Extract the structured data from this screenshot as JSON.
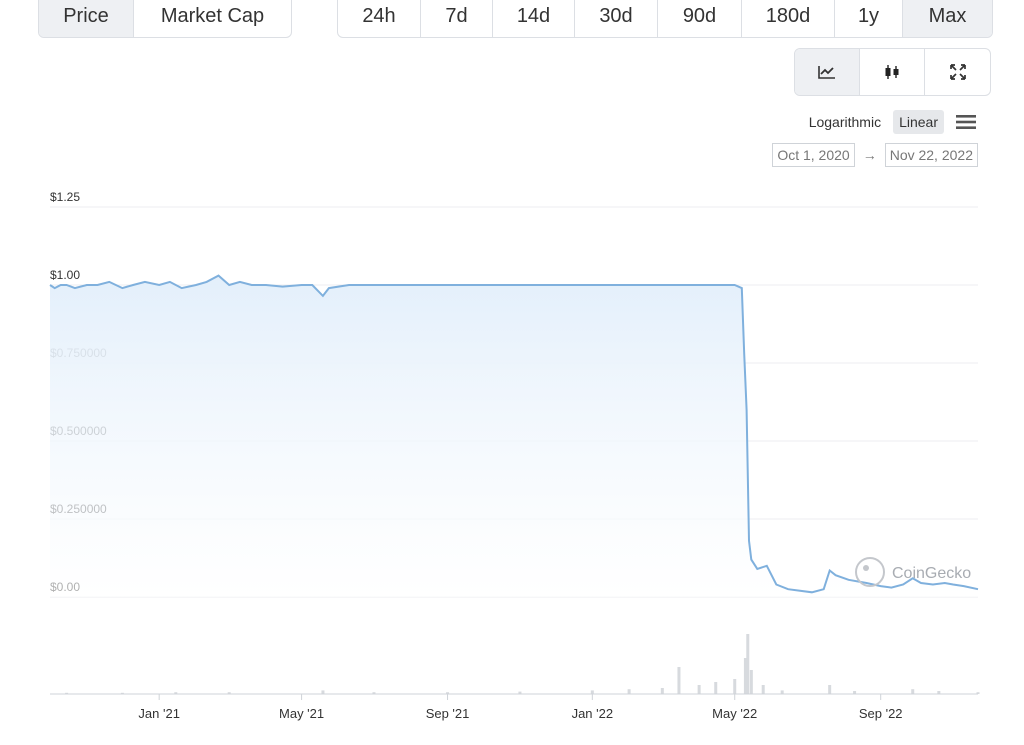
{
  "metric_tabs": [
    {
      "label": "Price",
      "active": true
    },
    {
      "label": "Market Cap",
      "active": false
    }
  ],
  "range_tabs": [
    {
      "label": "24h",
      "active": false
    },
    {
      "label": "7d",
      "active": false
    },
    {
      "label": "14d",
      "active": false
    },
    {
      "label": "30d",
      "active": false
    },
    {
      "label": "90d",
      "active": false
    },
    {
      "label": "180d",
      "active": false
    },
    {
      "label": "1y",
      "active": false
    },
    {
      "label": "Max",
      "active": true
    }
  ],
  "chart_type_tabs": [
    {
      "icon": "line-chart-icon",
      "active": true
    },
    {
      "icon": "candlestick-icon",
      "active": false
    },
    {
      "icon": "fullscreen-icon",
      "active": false
    }
  ],
  "scale": {
    "logarithmic": "Logarithmic",
    "linear": "Linear",
    "active": "linear"
  },
  "date_range": {
    "from": "Oct 1, 2020",
    "arrow": "→",
    "to": "Nov 22, 2022"
  },
  "watermark": "CoinGecko",
  "colors": {
    "line": "#7fb0dd",
    "fill_top": "#e3effb",
    "volume": "#d7dade",
    "grid": "#eceef1"
  },
  "chart_data": {
    "type": "area",
    "x_range": [
      "2020-10-01",
      "2022-11-22"
    ],
    "ylim": [
      0,
      1.25
    ],
    "y_ticks": [
      {
        "value": 1.25,
        "label": "$1.25"
      },
      {
        "value": 1.0,
        "label": "$1.00"
      },
      {
        "value": 0.75,
        "label": "$0.750000"
      },
      {
        "value": 0.5,
        "label": "$0.500000"
      },
      {
        "value": 0.25,
        "label": "$0.250000"
      },
      {
        "value": 0.0,
        "label": "$0.00"
      }
    ],
    "x_ticks": [
      {
        "date": "2021-01-01",
        "label": "Jan '21"
      },
      {
        "date": "2021-05-01",
        "label": "May '21"
      },
      {
        "date": "2021-09-01",
        "label": "Sep '21"
      },
      {
        "date": "2022-01-01",
        "label": "Jan '22"
      },
      {
        "date": "2022-05-01",
        "label": "May '22"
      },
      {
        "date": "2022-09-01",
        "label": "Sep '22"
      }
    ],
    "series": [
      {
        "points": [
          [
            "2020-10-01",
            1.0
          ],
          [
            "2020-10-05",
            0.99
          ],
          [
            "2020-10-10",
            1.0
          ],
          [
            "2020-10-15",
            1.0
          ],
          [
            "2020-10-22",
            0.99
          ],
          [
            "2020-11-01",
            1.0
          ],
          [
            "2020-11-10",
            1.0
          ],
          [
            "2020-11-20",
            1.01
          ],
          [
            "2020-12-01",
            0.99
          ],
          [
            "2020-12-10",
            1.0
          ],
          [
            "2020-12-20",
            1.01
          ],
          [
            "2021-01-01",
            1.0
          ],
          [
            "2021-01-10",
            1.01
          ],
          [
            "2021-01-20",
            0.99
          ],
          [
            "2021-02-01",
            1.0
          ],
          [
            "2021-02-10",
            1.01
          ],
          [
            "2021-02-20",
            1.03
          ],
          [
            "2021-03-01",
            1.0
          ],
          [
            "2021-03-10",
            1.01
          ],
          [
            "2021-03-20",
            1.0
          ],
          [
            "2021-04-01",
            1.0
          ],
          [
            "2021-04-15",
            0.995
          ],
          [
            "2021-05-01",
            1.0
          ],
          [
            "2021-05-10",
            1.0
          ],
          [
            "2021-05-19",
            0.965
          ],
          [
            "2021-05-24",
            0.99
          ],
          [
            "2021-06-10",
            1.0
          ],
          [
            "2021-07-01",
            1.0
          ],
          [
            "2021-08-01",
            1.0
          ],
          [
            "2021-09-01",
            1.0
          ],
          [
            "2021-10-01",
            1.0
          ],
          [
            "2021-11-01",
            1.0
          ],
          [
            "2021-12-01",
            1.0
          ],
          [
            "2022-01-01",
            1.0
          ],
          [
            "2022-02-01",
            1.0
          ],
          [
            "2022-03-01",
            1.0
          ],
          [
            "2022-04-01",
            1.0
          ],
          [
            "2022-05-01",
            1.0
          ],
          [
            "2022-05-07",
            0.99
          ],
          [
            "2022-05-09",
            0.78
          ],
          [
            "2022-05-11",
            0.6
          ],
          [
            "2022-05-13",
            0.18
          ],
          [
            "2022-05-15",
            0.12
          ],
          [
            "2022-05-20",
            0.09
          ],
          [
            "2022-05-28",
            0.1
          ],
          [
            "2022-06-05",
            0.04
          ],
          [
            "2022-06-15",
            0.025
          ],
          [
            "2022-06-25",
            0.02
          ],
          [
            "2022-07-05",
            0.015
          ],
          [
            "2022-07-15",
            0.025
          ],
          [
            "2022-07-20",
            0.085
          ],
          [
            "2022-07-25",
            0.07
          ],
          [
            "2022-08-05",
            0.055
          ],
          [
            "2022-08-20",
            0.045
          ],
          [
            "2022-09-01",
            0.035
          ],
          [
            "2022-09-10",
            0.03
          ],
          [
            "2022-09-20",
            0.04
          ],
          [
            "2022-09-28",
            0.06
          ],
          [
            "2022-10-05",
            0.045
          ],
          [
            "2022-10-15",
            0.04
          ],
          [
            "2022-10-25",
            0.045
          ],
          [
            "2022-11-01",
            0.04
          ],
          [
            "2022-11-10",
            0.035
          ],
          [
            "2022-11-22",
            0.025
          ]
        ]
      }
    ],
    "volume": [
      [
        "2020-10-15",
        0.02
      ],
      [
        "2020-12-01",
        0.02
      ],
      [
        "2021-01-15",
        0.03
      ],
      [
        "2021-03-01",
        0.03
      ],
      [
        "2021-05-19",
        0.06
      ],
      [
        "2021-07-01",
        0.03
      ],
      [
        "2021-09-01",
        0.03
      ],
      [
        "2021-11-01",
        0.04
      ],
      [
        "2022-01-01",
        0.06
      ],
      [
        "2022-02-01",
        0.08
      ],
      [
        "2022-03-01",
        0.1
      ],
      [
        "2022-03-15",
        0.45
      ],
      [
        "2022-04-01",
        0.15
      ],
      [
        "2022-04-15",
        0.2
      ],
      [
        "2022-05-01",
        0.25
      ],
      [
        "2022-05-10",
        0.6
      ],
      [
        "2022-05-12",
        1.0
      ],
      [
        "2022-05-15",
        0.4
      ],
      [
        "2022-05-25",
        0.15
      ],
      [
        "2022-06-10",
        0.06
      ],
      [
        "2022-07-20",
        0.15
      ],
      [
        "2022-08-10",
        0.05
      ],
      [
        "2022-09-28",
        0.08
      ],
      [
        "2022-10-20",
        0.05
      ],
      [
        "2022-11-22",
        0.03
      ]
    ],
    "grid": true
  }
}
